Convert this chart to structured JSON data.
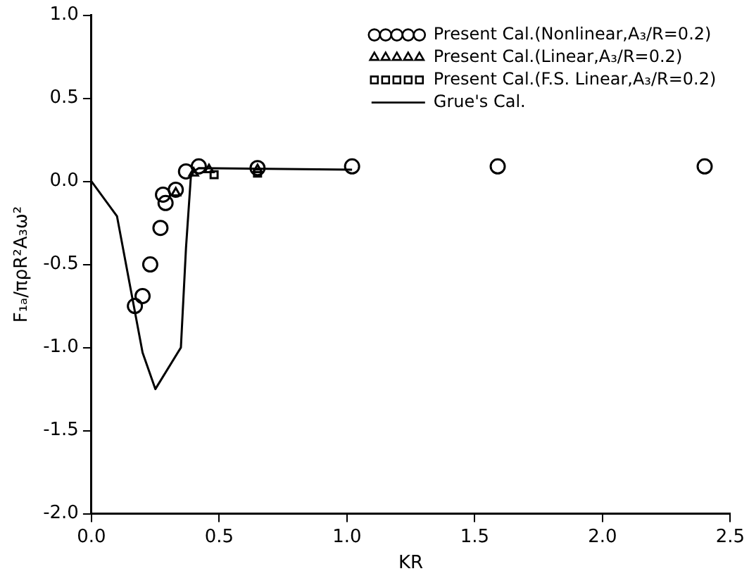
{
  "chart_data": {
    "type": "scatter",
    "xlabel": "KR",
    "ylabel": "F₁ₐ/πρR²A₃ω²",
    "xlim": [
      0,
      2.5
    ],
    "ylim": [
      -2,
      1
    ],
    "xticks": [
      {
        "value": 0,
        "label": "0.0"
      },
      {
        "value": 0.5,
        "label": "0.5"
      },
      {
        "value": 1,
        "label": "1.0"
      },
      {
        "value": 1.5,
        "label": "1.5"
      },
      {
        "value": 2,
        "label": "2.0"
      },
      {
        "value": 2.5,
        "label": "2.5"
      }
    ],
    "yticks": [
      {
        "value": -2,
        "label": "-2.0"
      },
      {
        "value": -1.5,
        "label": "-1.5"
      },
      {
        "value": -1,
        "label": "-1.0"
      },
      {
        "value": -0.5,
        "label": "-0.5"
      },
      {
        "value": 0,
        "label": "0.0"
      },
      {
        "value": 0.5,
        "label": "0.5"
      },
      {
        "value": 1,
        "label": "1.0"
      }
    ],
    "grid": false,
    "legend": "top right",
    "series": [
      {
        "name": "Present Cal.(Nonlinear,A₃/R=0.2)",
        "type": "scatter",
        "marker": "circle",
        "color": "#000000",
        "x": [
          0.17,
          0.2,
          0.23,
          0.27,
          0.28,
          0.29,
          0.33,
          0.37,
          0.42,
          0.65,
          1.02,
          1.59,
          2.4
        ],
        "values": [
          -0.75,
          -0.69,
          -0.5,
          -0.28,
          -0.08,
          -0.13,
          -0.05,
          0.06,
          0.09,
          0.08,
          0.09,
          0.09,
          0.09
        ]
      },
      {
        "name": "Present Cal.(Linear,A₃/R=0.2)",
        "type": "scatter",
        "marker": "triangle",
        "color": "#000000",
        "x": [
          0.33,
          0.4,
          0.46,
          0.65
        ],
        "values": [
          -0.07,
          0.05,
          0.07,
          0.07
        ]
      },
      {
        "name": "Present Cal.(F.S. Linear,A₃/R=0.2)",
        "type": "scatter",
        "marker": "square",
        "color": "#000000",
        "x": [
          0.48,
          0.65
        ],
        "values": [
          0.04,
          0.05
        ]
      },
      {
        "name": "Grue's Cal.",
        "type": "line",
        "marker": "none",
        "line_style": "solid",
        "color": "#000000",
        "x": [
          0,
          0.1,
          0.2,
          0.25,
          0.35,
          0.37,
          0.39,
          0.42,
          1.02
        ],
        "values": [
          0,
          -0.21,
          -1.03,
          -1.25,
          -1,
          -0.4,
          0.05,
          0.08,
          0.07
        ]
      }
    ]
  }
}
